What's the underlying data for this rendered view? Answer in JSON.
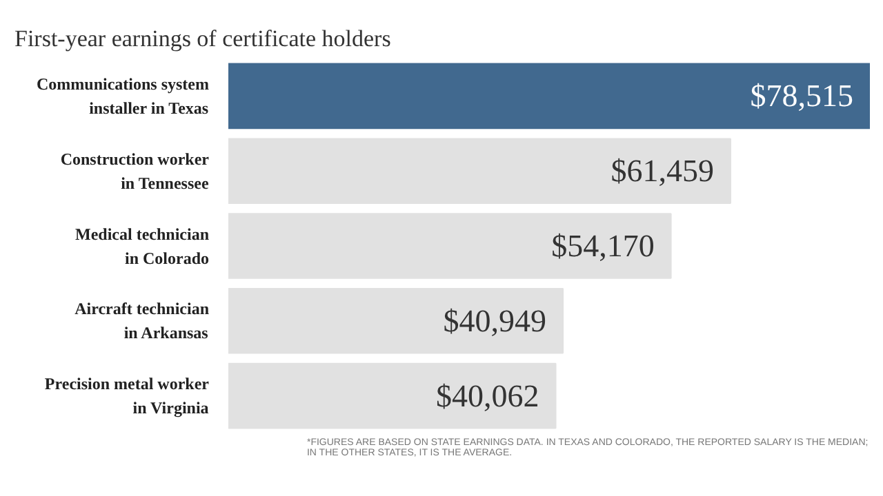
{
  "chart_data": {
    "type": "bar",
    "orientation": "horizontal",
    "title": "First-year earnings of certificate holders",
    "categories": [
      "Communications system\ninstaller in Texas",
      "Construction worker\nin Tennessee",
      "Medical technician\nin Colorado",
      "Aircraft technician\nin Arkansas",
      "Precision metal worker\nin Virginia"
    ],
    "values": [
      78515,
      61459,
      54170,
      40949,
      40062
    ],
    "value_labels": [
      "$78,515",
      "$61,459",
      "$54,170",
      "$40,949",
      "$40,062"
    ],
    "colors": [
      "#41698f",
      "#e1e1e1",
      "#e1e1e1",
      "#e1e1e1",
      "#e1e1e1"
    ],
    "annotations": [
      "*FIGURES ARE BASED ON STATE EARNINGS DATA. IN TEXAS AND COLORADO, THE REPORTED SALARY IS THE MEDIAN;\nIN THE OTHER STATES, IT IS THE AVERAGE."
    ],
    "grid": false
  }
}
